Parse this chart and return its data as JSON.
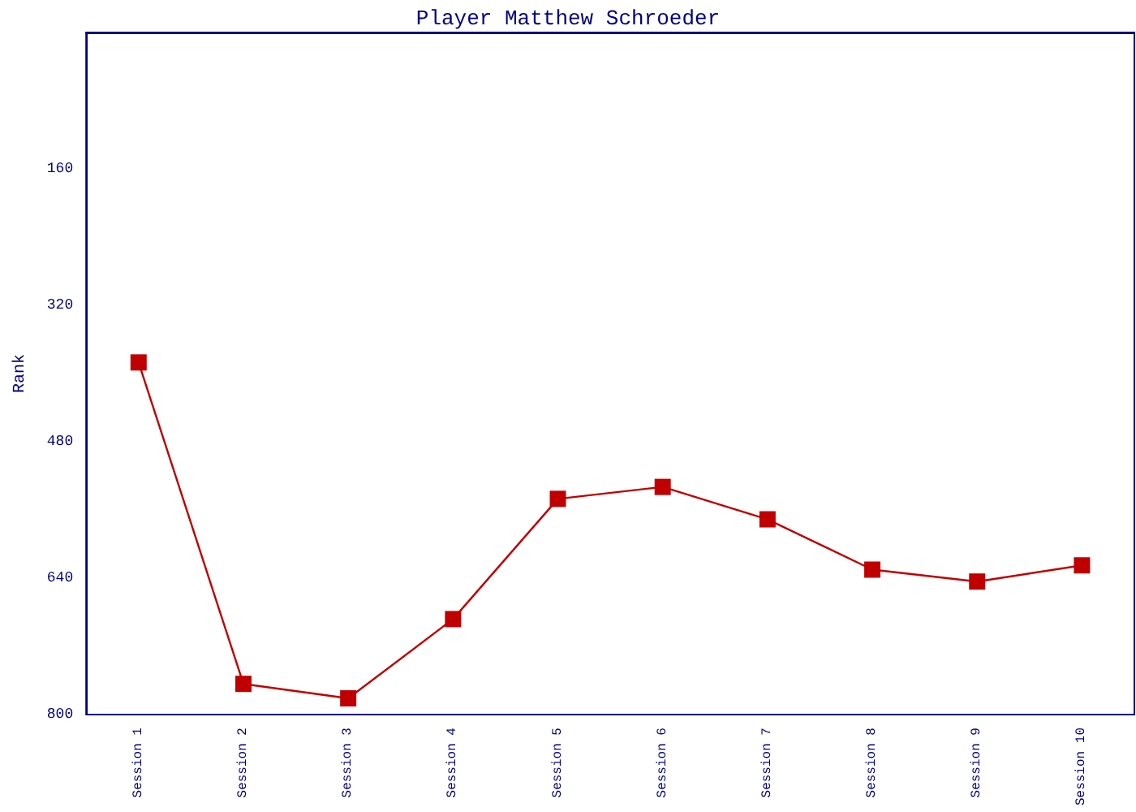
{
  "chart_data": {
    "type": "line",
    "title": "Player Matthew Schroeder",
    "ylabel": "Rank",
    "categories": [
      "Session 1",
      "Session 2",
      "Session 3",
      "Session 4",
      "Session 5",
      "Session 6",
      "Session 7",
      "Session 8",
      "Session 9",
      "Session 10"
    ],
    "series": [
      {
        "color": "#c00000",
        "values": [
          387,
          764,
          781,
          688,
          547,
          533,
          571,
          630,
          644,
          625
        ]
      }
    ],
    "ylim": [
      800,
      0
    ],
    "yticks": [
      160,
      320,
      480,
      640,
      800
    ],
    "grid": false,
    "marker": "square",
    "line_style": "solid"
  }
}
